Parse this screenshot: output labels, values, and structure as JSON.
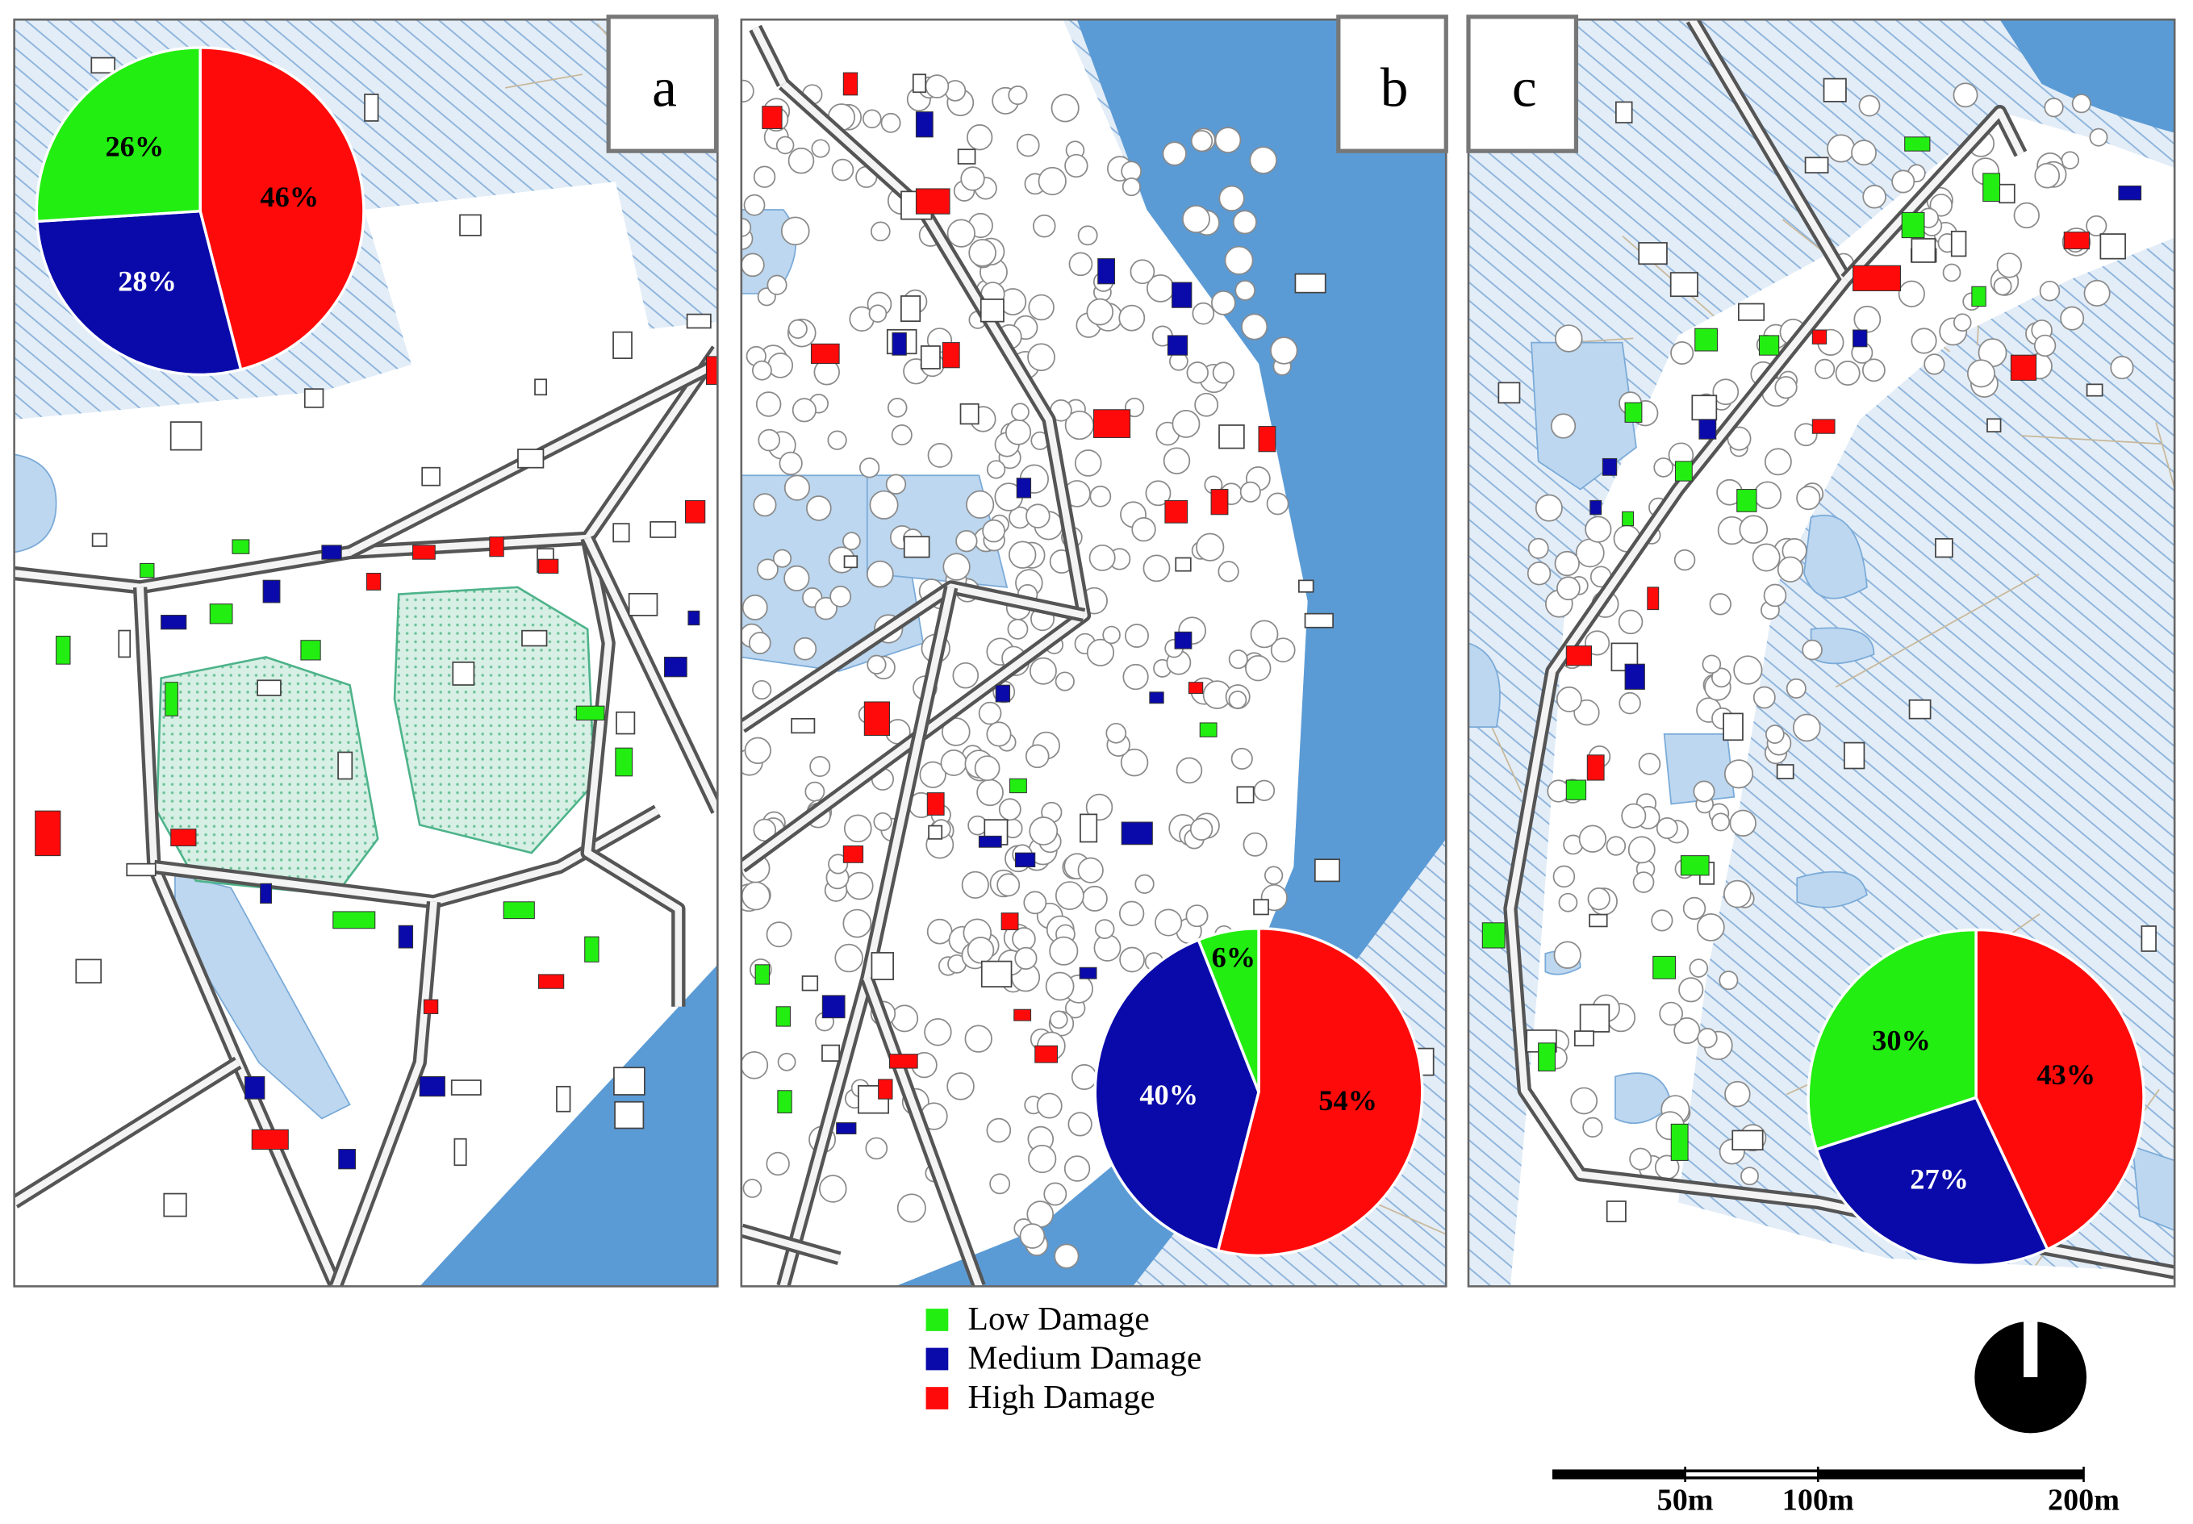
{
  "chart_data": [
    {
      "type": "pie",
      "panel": "a",
      "values": [
        26,
        28,
        46
      ],
      "value_labels": [
        "26%",
        "28%",
        "46%"
      ]
    },
    {
      "type": "pie",
      "panel": "b",
      "values": [
        6,
        40,
        54
      ],
      "value_labels": [
        "6%",
        "40%",
        "54%"
      ]
    },
    {
      "type": "pie",
      "panel": "c",
      "values": [
        30,
        27,
        43
      ],
      "value_labels": [
        "30%",
        "27%",
        "43%"
      ]
    }
  ],
  "legend": [
    {
      "name": "Low Damage",
      "color": "#22ee11"
    },
    {
      "name": "Medium Damage",
      "color": "#0a0aaa"
    },
    {
      "name": "High Damage",
      "color": "#ff0a0a"
    }
  ],
  "scale_bar": {
    "xlim": [
      0,
      200
    ],
    "xticks": [
      {
        "value": 50,
        "label": "50m"
      },
      {
        "value": 100,
        "label": "100m"
      },
      {
        "value": 200,
        "label": "200m"
      }
    ]
  }
}
